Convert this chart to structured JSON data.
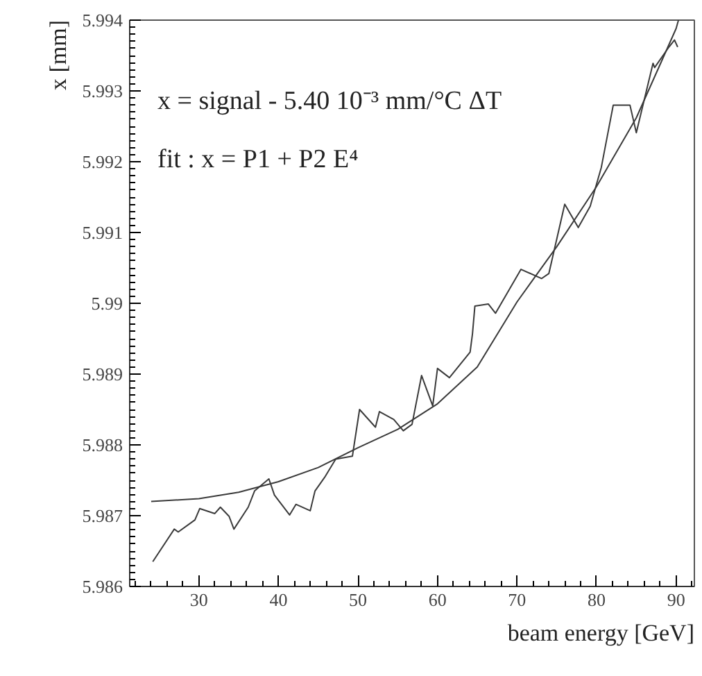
{
  "chart_data": {
    "type": "line",
    "xlabel": "beam energy [GeV]",
    "ylabel": "x [mm]",
    "annotations": [
      "x = signal - 5.40 10⁻³ mm/°C ΔT",
      "fit : x = P1 + P2 E⁴"
    ],
    "xlim": [
      21.3,
      92.3
    ],
    "ylim": [
      5.986,
      5.994
    ],
    "xticks": [
      30,
      40,
      50,
      60,
      70,
      80,
      90
    ],
    "yticks": [
      5.986,
      5.987,
      5.988,
      5.989,
      5.99,
      5.991,
      5.992,
      5.993,
      5.994
    ],
    "series": [
      {
        "color": "#3a3a3a",
        "x": [
          24.2,
          26.9,
          27.4,
          29.5,
          30.1,
          32.0,
          32.7,
          33.8,
          34.4,
          36.2,
          37.0,
          38.8,
          39.5,
          41.4,
          42.2,
          44.0,
          44.6,
          45.8,
          47.2,
          49.3,
          50.2,
          52.2,
          52.7,
          54.5,
          55.7,
          56.8,
          58.0,
          59.4,
          60.0,
          61.5,
          64.1,
          64.4,
          64.7,
          66.4,
          67.3,
          70.5,
          73.1,
          74.0,
          76.0,
          77.7,
          79.2,
          80.6,
          82.1,
          84.2,
          85.0,
          87.1,
          87.3,
          89.1,
          89.8,
          90.2
        ],
        "values": [
          5.98635,
          5.98681,
          5.98677,
          5.98694,
          5.9871,
          5.98703,
          5.98712,
          5.98699,
          5.98681,
          5.98712,
          5.98735,
          5.98752,
          5.98729,
          5.98701,
          5.98716,
          5.98707,
          5.98735,
          5.98754,
          5.9878,
          5.98784,
          5.9885,
          5.98825,
          5.98847,
          5.98836,
          5.9882,
          5.98829,
          5.98898,
          5.98855,
          5.98908,
          5.98895,
          5.98931,
          5.98957,
          5.98996,
          5.98999,
          5.98986,
          5.99048,
          5.99035,
          5.99042,
          5.9914,
          5.99107,
          5.99137,
          5.99192,
          5.9928,
          5.9928,
          5.99241,
          5.99339,
          5.99333,
          5.99362,
          5.99372,
          5.99362
        ]
      },
      {
        "type": "line",
        "color": "#3a3a3a",
        "x": [
          24,
          30,
          35,
          40,
          45,
          50,
          55,
          60,
          65,
          70,
          75,
          80,
          85,
          90,
          90.3
        ],
        "values": [
          5.9872,
          5.98724,
          5.98733,
          5.98748,
          5.98768,
          5.98796,
          5.98822,
          5.98858,
          5.9891,
          5.99002,
          5.9908,
          5.99165,
          5.99262,
          5.99388,
          5.994
        ]
      }
    ]
  }
}
